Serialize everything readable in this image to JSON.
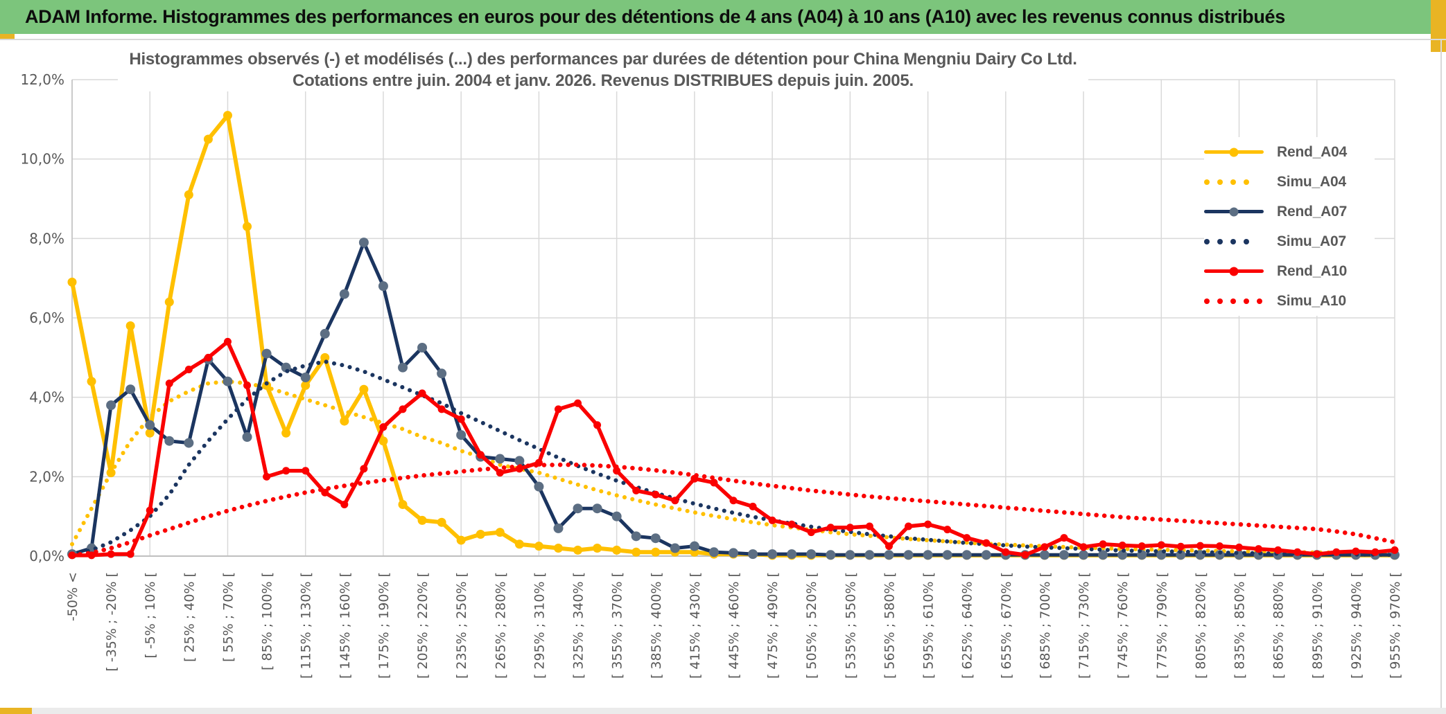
{
  "header": {
    "title": "ADAM Informe. Histogrammes des performances en euros pour des détentions de 4 ans (A04) à 10 ans (A10) avec les revenus connus distribués"
  },
  "chart": {
    "title_line1": "Histogrammes observés (-) et modélisés (...) des performances par durées de détention pour China Mengniu Dairy Co Ltd.",
    "title_line2": "Cotations entre juin. 2004 et janv. 2026. Revenus DISTRIBUES depuis juin. 2005."
  },
  "colors": {
    "header_green": "#7CC57C",
    "accent_gold": "#E9B424",
    "series_gold": "#FFC000",
    "series_navy": "#1B3560",
    "navy_marker_fill": "#5C6E83",
    "series_red": "#FA0000",
    "text_gray": "#595959",
    "gridline": "#D9D9D9",
    "axis_line": "#BFBFBF"
  },
  "chart_data": {
    "type": "line",
    "title": "Histogrammes observés (-) et modélisés (...) des performances par durées de détention pour China Mengniu Dairy Co Ltd. Cotations entre juin. 2004 et janv. 2026. Revenus DISTRIBUES depuis juin. 2005.",
    "ylabel": "",
    "xlabel": "",
    "ylim": [
      0,
      12
    ],
    "grid": true,
    "legend_position": "right",
    "y_tick_labels": [
      "0,0%",
      "2,0%",
      "4,0%",
      "6,0%",
      "8,0%",
      "10,0%",
      "12,0%"
    ],
    "n_bins": 69,
    "bins_per_label": 2,
    "categories": [
      "-50% <",
      "[ -35% ; -20% [",
      "[ -5% ; 10% [",
      "[ 25% ; 40% [",
      "[ 55% ; 70% [",
      "[ 85% ; 100% [",
      "[ 115% ; 130% [",
      "[ 145% ; 160% [",
      "[ 175% ; 190% [",
      "[ 205% ; 220% [",
      "[ 235% ; 250% [",
      "[ 265% ; 280% [",
      "[ 295% ; 310% [",
      "[ 325% ; 340% [",
      "[ 355% ; 370% [",
      "[ 385% ; 400% [",
      "[ 415% ; 430% [",
      "[ 445% ; 460% [",
      "[ 475% ; 490% [",
      "[ 505% ; 520% [",
      "[ 535% ; 550% [",
      "[ 565% ; 580% [",
      "[ 595% ; 610% [",
      "[ 625% ; 640% [",
      "[ 655% ; 670% [",
      "[ 685% ; 700% [",
      "[ 715% ; 730% [",
      "[ 745% ; 760% [",
      "[ 775% ; 790% [",
      "[ 805% ; 820% [",
      "[ 835% ; 850% [",
      "[ 865% ; 880% [",
      "[ 895% ; 910% [",
      "[ 925% ; 940% [",
      "[ 955% ; 970% ["
    ],
    "series": [
      {
        "name": "Rend_A04",
        "style": "solid",
        "color": "#FFC000",
        "marker_fill": "#FFC000",
        "values": [
          6.9,
          4.4,
          2.1,
          5.8,
          3.1,
          6.4,
          9.1,
          10.5,
          11.1,
          8.3,
          4.3,
          3.1,
          4.3,
          5.0,
          3.4,
          4.2,
          2.9,
          1.3,
          0.9,
          0.85,
          0.4,
          0.55,
          0.6,
          0.3,
          0.25,
          0.2,
          0.15,
          0.2,
          0.15,
          0.1,
          0.1,
          0.1,
          0.1,
          0.05,
          0.05,
          0.05,
          0.02,
          0.02,
          0.02,
          0.02,
          0.02,
          0.02,
          0.02,
          0.02,
          0.02,
          0.02,
          0.02,
          0.02,
          0.02,
          0.02,
          0.02,
          0.02,
          0.02,
          0.02,
          0.02,
          0.02,
          0.02,
          0.02,
          0.02,
          0.02,
          0.02,
          0.02,
          0.02,
          0.02,
          0.02,
          0.02,
          0.02,
          0.02,
          0.02
        ]
      },
      {
        "name": "Simu_A04",
        "style": "dotted",
        "color": "#FFC000",
        "values": [
          0.3,
          1.2,
          2.1,
          2.9,
          3.5,
          3.9,
          4.15,
          4.35,
          4.4,
          4.35,
          4.25,
          4.1,
          3.95,
          3.8,
          3.65,
          3.5,
          3.35,
          3.2,
          3.0,
          2.85,
          2.65,
          2.5,
          2.3,
          2.2,
          2.1,
          1.95,
          1.8,
          1.66,
          1.53,
          1.41,
          1.3,
          1.2,
          1.1,
          1.01,
          0.93,
          0.85,
          0.78,
          0.72,
          0.66,
          0.6,
          0.55,
          0.51,
          0.47,
          0.43,
          0.4,
          0.37,
          0.34,
          0.31,
          0.29,
          0.27,
          0.25,
          0.23,
          0.21,
          0.2,
          0.18,
          0.17,
          0.16,
          0.15,
          0.14,
          0.13,
          0.12,
          0.11,
          0.1,
          0.1,
          0.09,
          0.09,
          0.08,
          0.08,
          0.07
        ]
      },
      {
        "name": "Rend_A07",
        "style": "solid",
        "color": "#1B3560",
        "marker_fill": "#5C6E83",
        "values": [
          0.05,
          0.2,
          3.8,
          4.2,
          3.3,
          2.9,
          2.85,
          4.95,
          4.4,
          3.0,
          5.1,
          4.75,
          4.5,
          5.6,
          6.6,
          7.9,
          6.8,
          4.75,
          5.25,
          4.6,
          3.05,
          2.5,
          2.45,
          2.4,
          1.75,
          0.7,
          1.2,
          1.2,
          1.0,
          0.5,
          0.45,
          0.2,
          0.25,
          0.1,
          0.08,
          0.05,
          0.05,
          0.05,
          0.05,
          0.03,
          0.03,
          0.03,
          0.03,
          0.03,
          0.03,
          0.03,
          0.03,
          0.03,
          0.03,
          0.03,
          0.03,
          0.03,
          0.03,
          0.03,
          0.03,
          0.03,
          0.03,
          0.03,
          0.03,
          0.03,
          0.03,
          0.03,
          0.03,
          0.03,
          0.03,
          0.03,
          0.03,
          0.03,
          0.03
        ]
      },
      {
        "name": "Simu_A07",
        "style": "dotted",
        "color": "#1B3560",
        "values": [
          0.05,
          0.15,
          0.35,
          0.65,
          1.0,
          1.55,
          2.3,
          2.9,
          3.45,
          3.95,
          4.35,
          4.65,
          4.8,
          4.9,
          4.8,
          4.65,
          4.45,
          4.25,
          4.05,
          3.85,
          3.6,
          3.38,
          3.15,
          2.92,
          2.7,
          2.48,
          2.27,
          2.08,
          1.9,
          1.74,
          1.59,
          1.45,
          1.32,
          1.2,
          1.09,
          0.99,
          0.9,
          0.82,
          0.74,
          0.67,
          0.61,
          0.55,
          0.5,
          0.45,
          0.41,
          0.37,
          0.33,
          0.3,
          0.27,
          0.24,
          0.22,
          0.2,
          0.18,
          0.16,
          0.14,
          0.13,
          0.12,
          0.11,
          0.1,
          0.09,
          0.08,
          0.07,
          0.06,
          0.06,
          0.05,
          0.05,
          0.04,
          0.04,
          0.03
        ]
      },
      {
        "name": "Rend_A10",
        "style": "solid",
        "color": "#FA0000",
        "marker_fill": "#FA0000",
        "values": [
          0.02,
          0.02,
          0.05,
          0.05,
          1.15,
          4.35,
          4.7,
          5.0,
          5.4,
          4.3,
          2.0,
          2.15,
          2.15,
          1.6,
          1.3,
          2.2,
          3.25,
          3.7,
          4.1,
          3.7,
          3.45,
          2.55,
          2.1,
          2.2,
          2.35,
          3.7,
          3.85,
          3.3,
          2.15,
          1.65,
          1.55,
          1.4,
          1.95,
          1.85,
          1.4,
          1.25,
          0.9,
          0.8,
          0.6,
          0.72,
          0.72,
          0.75,
          0.25,
          0.75,
          0.8,
          0.67,
          0.46,
          0.33,
          0.1,
          0.03,
          0.23,
          0.46,
          0.23,
          0.3,
          0.27,
          0.25,
          0.28,
          0.24,
          0.26,
          0.25,
          0.22,
          0.18,
          0.15,
          0.1,
          0.05,
          0.1,
          0.12,
          0.1,
          0.15
        ]
      },
      {
        "name": "Simu_A10",
        "style": "dotted",
        "color": "#FA0000",
        "values": [
          0.02,
          0.08,
          0.2,
          0.35,
          0.52,
          0.68,
          0.84,
          1.0,
          1.14,
          1.27,
          1.39,
          1.5,
          1.6,
          1.69,
          1.77,
          1.84,
          1.91,
          1.97,
          2.03,
          2.08,
          2.13,
          2.18,
          2.22,
          2.26,
          2.29,
          2.3,
          2.3,
          2.28,
          2.25,
          2.21,
          2.16,
          2.1,
          2.04,
          1.97,
          1.9,
          1.83,
          1.77,
          1.71,
          1.65,
          1.6,
          1.55,
          1.5,
          1.46,
          1.42,
          1.38,
          1.34,
          1.3,
          1.26,
          1.22,
          1.18,
          1.14,
          1.1,
          1.06,
          1.02,
          0.98,
          0.95,
          0.92,
          0.89,
          0.86,
          0.83,
          0.8,
          0.77,
          0.74,
          0.71,
          0.68,
          0.62,
          0.55,
          0.45,
          0.35
        ]
      }
    ]
  }
}
